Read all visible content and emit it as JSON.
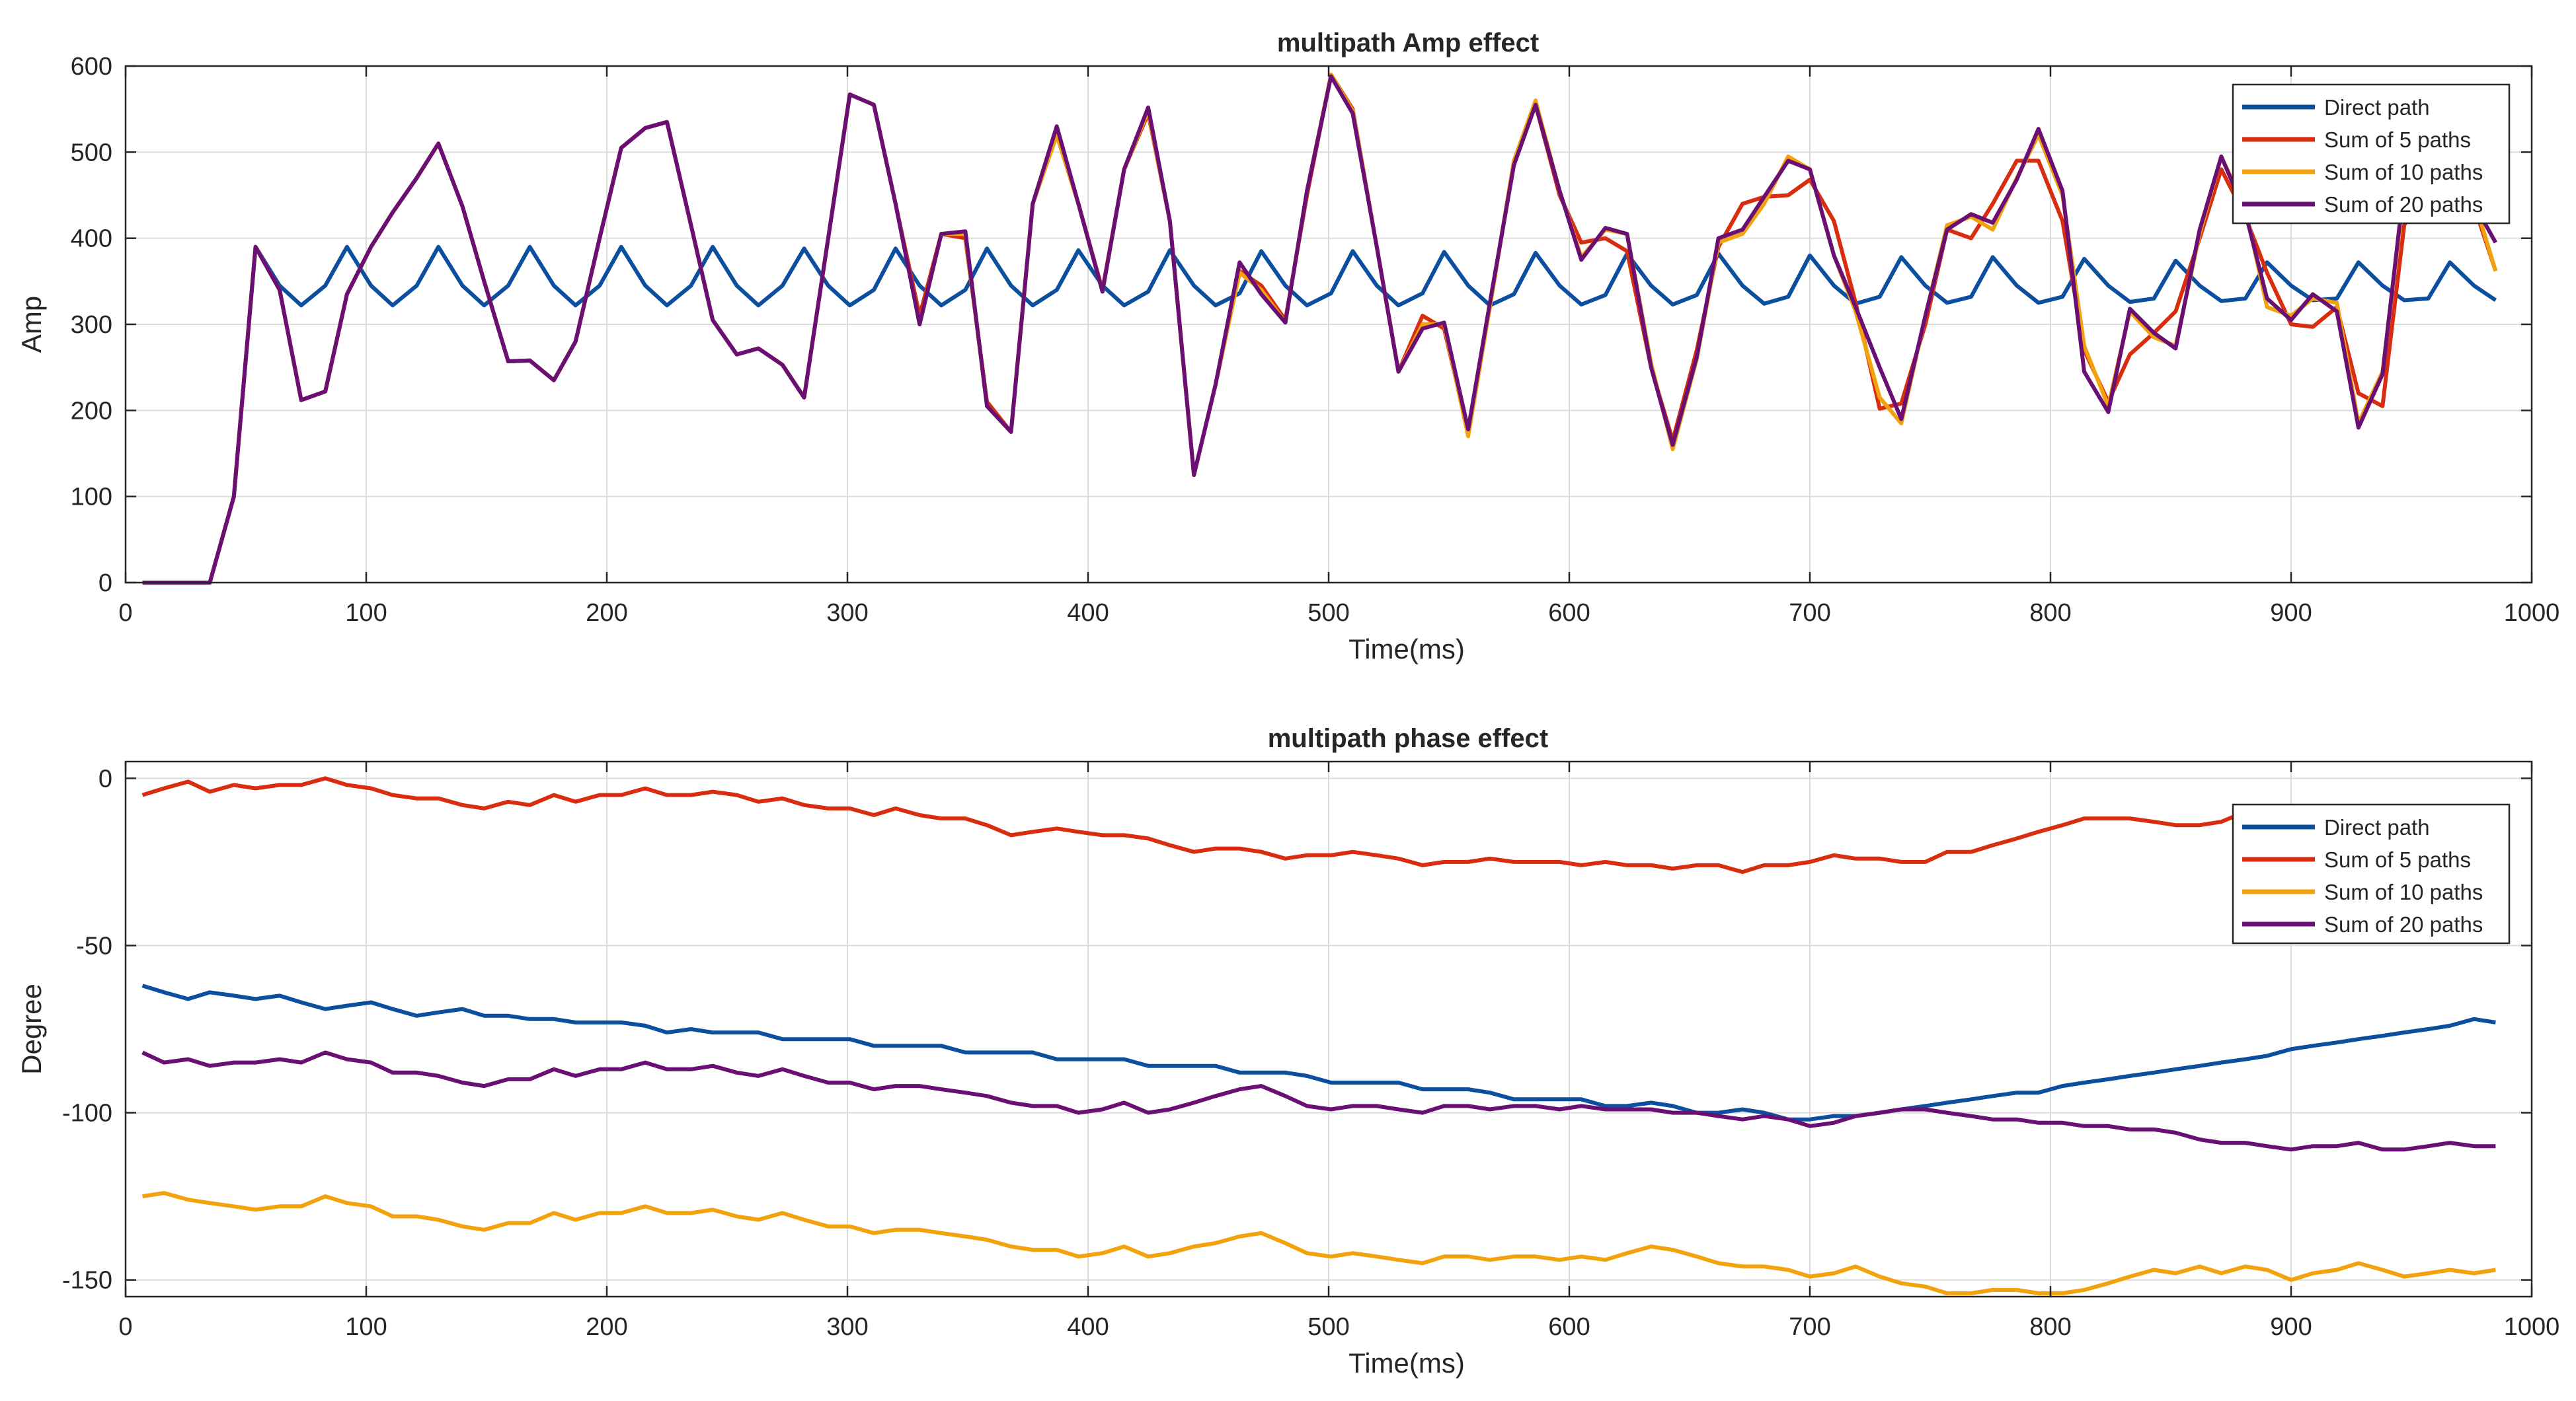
{
  "chart_data": [
    {
      "type": "line",
      "title": "multipath Amp effect",
      "xlabel": "Time(ms)",
      "ylabel": "Amp",
      "xlim": [
        0,
        1000
      ],
      "ylim": [
        0,
        600
      ],
      "xticks": [
        0,
        100,
        200,
        300,
        400,
        500,
        600,
        700,
        800,
        900,
        1000
      ],
      "yticks": [
        0,
        100,
        200,
        300,
        400,
        500,
        600
      ],
      "grid": true,
      "legend_position": "top-right",
      "x": [
        7,
        16,
        26,
        35,
        45,
        54,
        64,
        73,
        83,
        92,
        102,
        111,
        121,
        130,
        140,
        149,
        159,
        168,
        178,
        187,
        197,
        206,
        216,
        225,
        235,
        244,
        254,
        263,
        273,
        282,
        292,
        301,
        311,
        320,
        330,
        339,
        349,
        358,
        368,
        377,
        387,
        396,
        406,
        415,
        425,
        434,
        444,
        453,
        463,
        472,
        482,
        491,
        501,
        510,
        520,
        529,
        539,
        548,
        558,
        567,
        577,
        586,
        596,
        605,
        615,
        624,
        634,
        643,
        653,
        662,
        672,
        681,
        691,
        700,
        710,
        719,
        729,
        738,
        748,
        757,
        767,
        776,
        786,
        795,
        805,
        814,
        824,
        833,
        843,
        852,
        862,
        871,
        881,
        890,
        900,
        909,
        919,
        928,
        938,
        947,
        957,
        966,
        976,
        985
      ],
      "series": [
        {
          "name": "Direct path",
          "color": "#0B4F9E",
          "values": [
            0,
            0,
            0,
            0,
            100,
            390,
            345,
            322,
            345,
            390,
            345,
            322,
            345,
            390,
            345,
            322,
            345,
            390,
            345,
            322,
            345,
            390,
            345,
            322,
            345,
            390,
            345,
            322,
            345,
            388,
            345,
            322,
            340,
            388,
            345,
            322,
            340,
            388,
            345,
            322,
            340,
            386,
            345,
            322,
            338,
            386,
            345,
            322,
            336,
            385,
            345,
            322,
            336,
            385,
            345,
            322,
            336,
            384,
            345,
            322,
            335,
            383,
            345,
            323,
            334,
            382,
            345,
            323,
            334,
            382,
            345,
            324,
            332,
            380,
            345,
            324,
            332,
            378,
            345,
            325,
            332,
            378,
            345,
            325,
            332,
            376,
            345,
            326,
            330,
            374,
            345,
            327,
            330,
            372,
            345,
            328,
            330,
            372,
            345,
            328,
            330,
            372,
            345,
            328
          ]
        },
        {
          "name": "Sum of 5 paths",
          "color": "#D92D0F",
          "values": [
            0,
            0,
            0,
            0,
            100,
            390,
            340,
            212,
            222,
            335,
            390,
            430,
            470,
            510,
            437,
            350,
            257,
            258,
            235,
            280,
            400,
            505,
            528,
            535,
            415,
            305,
            265,
            272,
            253,
            215,
            400,
            567,
            555,
            440,
            310,
            405,
            400,
            210,
            175,
            440,
            520,
            440,
            340,
            480,
            545,
            420,
            125,
            230,
            362,
            345,
            305,
            450,
            590,
            550,
            390,
            245,
            310,
            295,
            175,
            320,
            490,
            555,
            450,
            395,
            400,
            385,
            250,
            165,
            270,
            390,
            440,
            448,
            450,
            468,
            420,
            325,
            202,
            208,
            300,
            410,
            400,
            440,
            490,
            490,
            420,
            270,
            210,
            265,
            290,
            315,
            400,
            480,
            425,
            360,
            300,
            297,
            320,
            220,
            205,
            415,
            460,
            465,
            438,
            362
          ]
        },
        {
          "name": "Sum of 10 paths",
          "color": "#F2A20C",
          "values": [
            0,
            0,
            0,
            0,
            100,
            390,
            340,
            212,
            222,
            335,
            390,
            430,
            470,
            510,
            437,
            350,
            257,
            258,
            235,
            280,
            400,
            505,
            528,
            535,
            415,
            305,
            265,
            272,
            253,
            215,
            400,
            567,
            555,
            440,
            300,
            405,
            405,
            205,
            175,
            440,
            520,
            440,
            338,
            480,
            548,
            420,
            125,
            230,
            360,
            340,
            302,
            455,
            590,
            548,
            390,
            245,
            300,
            300,
            170,
            320,
            490,
            560,
            455,
            378,
            410,
            405,
            255,
            155,
            260,
            395,
            405,
            440,
            495,
            480,
            380,
            315,
            215,
            185,
            310,
            415,
            425,
            410,
            470,
            520,
            450,
            275,
            205,
            315,
            285,
            275,
            405,
            495,
            435,
            320,
            310,
            330,
            325,
            185,
            245,
            455,
            490,
            465,
            445,
            362
          ]
        },
        {
          "name": "Sum of 20 paths",
          "color": "#6A0F74",
          "values": [
            0,
            0,
            0,
            0,
            100,
            390,
            340,
            212,
            222,
            335,
            390,
            430,
            470,
            510,
            437,
            350,
            257,
            258,
            235,
            280,
            400,
            505,
            528,
            535,
            415,
            305,
            265,
            272,
            253,
            215,
            400,
            567,
            555,
            440,
            300,
            405,
            408,
            205,
            175,
            440,
            530,
            440,
            338,
            480,
            552,
            420,
            125,
            230,
            372,
            335,
            302,
            455,
            588,
            545,
            390,
            245,
            295,
            302,
            178,
            325,
            485,
            555,
            455,
            375,
            412,
            405,
            250,
            160,
            262,
            400,
            410,
            448,
            490,
            480,
            380,
            320,
            250,
            190,
            310,
            410,
            428,
            418,
            468,
            527,
            455,
            245,
            198,
            318,
            290,
            272,
            410,
            495,
            430,
            330,
            305,
            335,
            315,
            180,
            242,
            462,
            495,
            468,
            440,
            395
          ]
        }
      ]
    },
    {
      "type": "line",
      "title": "multipath phase effect",
      "xlabel": "Time(ms)",
      "ylabel": "Degree",
      "xlim": [
        0,
        1000
      ],
      "ylim": [
        -155,
        5
      ],
      "xticks": [
        0,
        100,
        200,
        300,
        400,
        500,
        600,
        700,
        800,
        900,
        1000
      ],
      "yticks": [
        -150,
        -100,
        -50,
        0
      ],
      "grid": true,
      "legend_position": "top-right",
      "x": [
        7,
        16,
        26,
        35,
        45,
        54,
        64,
        73,
        83,
        92,
        102,
        111,
        121,
        130,
        140,
        149,
        159,
        168,
        178,
        187,
        197,
        206,
        216,
        225,
        235,
        244,
        254,
        263,
        273,
        282,
        292,
        301,
        311,
        320,
        330,
        339,
        349,
        358,
        368,
        377,
        387,
        396,
        406,
        415,
        425,
        434,
        444,
        453,
        463,
        472,
        482,
        491,
        501,
        510,
        520,
        529,
        539,
        548,
        558,
        567,
        577,
        586,
        596,
        605,
        615,
        624,
        634,
        643,
        653,
        662,
        672,
        681,
        691,
        700,
        710,
        719,
        729,
        738,
        748,
        757,
        767,
        776,
        786,
        795,
        805,
        814,
        824,
        833,
        843,
        852,
        862,
        871,
        881,
        890,
        900,
        909,
        919,
        928,
        938,
        947,
        957,
        966,
        976,
        985
      ],
      "series": [
        {
          "name": "Direct path",
          "color": "#0B4F9E",
          "values": [
            -62,
            -64,
            -66,
            -64,
            -65,
            -66,
            -65,
            -67,
            -69,
            -68,
            -67,
            -69,
            -71,
            -70,
            -69,
            -71,
            -71,
            -72,
            -72,
            -73,
            -73,
            -73,
            -74,
            -76,
            -75,
            -76,
            -76,
            -76,
            -78,
            -78,
            -78,
            -78,
            -80,
            -80,
            -80,
            -80,
            -82,
            -82,
            -82,
            -82,
            -84,
            -84,
            -84,
            -84,
            -86,
            -86,
            -86,
            -86,
            -88,
            -88,
            -88,
            -89,
            -91,
            -91,
            -91,
            -91,
            -93,
            -93,
            -93,
            -94,
            -96,
            -96,
            -96,
            -96,
            -98,
            -98,
            -97,
            -98,
            -100,
            -100,
            -99,
            -100,
            -102,
            -102,
            -101,
            -101,
            -100,
            -99,
            -98,
            -97,
            -96,
            -95,
            -94,
            -94,
            -92,
            -91,
            -90,
            -89,
            -88,
            -87,
            -86,
            -85,
            -84,
            -83,
            -81,
            -80,
            -79,
            -78,
            -77,
            -76,
            -75,
            -74,
            -72,
            -73
          ]
        },
        {
          "name": "Sum of 5 paths",
          "color": "#D92D0F",
          "values": [
            -5,
            -3,
            -1,
            -4,
            -2,
            -3,
            -2,
            -2,
            0,
            -2,
            -3,
            -5,
            -6,
            -6,
            -8,
            -9,
            -7,
            -8,
            -5,
            -7,
            -5,
            -5,
            -3,
            -5,
            -5,
            -4,
            -5,
            -7,
            -6,
            -8,
            -9,
            -9,
            -11,
            -9,
            -11,
            -12,
            -12,
            -14,
            -17,
            -16,
            -15,
            -16,
            -17,
            -17,
            -18,
            -20,
            -22,
            -21,
            -21,
            -22,
            -24,
            -23,
            -23,
            -22,
            -23,
            -24,
            -26,
            -25,
            -25,
            -24,
            -25,
            -25,
            -25,
            -26,
            -25,
            -26,
            -26,
            -27,
            -26,
            -26,
            -28,
            -26,
            -26,
            -25,
            -23,
            -24,
            -24,
            -25,
            -25,
            -22,
            -22,
            -20,
            -18,
            -16,
            -14,
            -12,
            -12,
            -12,
            -13,
            -14,
            -14,
            -13,
            -10,
            -11,
            -12,
            -11,
            -12,
            -11,
            -12,
            -11,
            -12,
            -12,
            -11,
            -11
          ]
        },
        {
          "name": "Sum of 10 paths",
          "color": "#F2A20C",
          "values": [
            -125,
            -124,
            -126,
            -127,
            -128,
            -129,
            -128,
            -128,
            -125,
            -127,
            -128,
            -131,
            -131,
            -132,
            -134,
            -135,
            -133,
            -133,
            -130,
            -132,
            -130,
            -130,
            -128,
            -130,
            -130,
            -129,
            -131,
            -132,
            -130,
            -132,
            -134,
            -134,
            -136,
            -135,
            -135,
            -136,
            -137,
            -138,
            -140,
            -141,
            -141,
            -143,
            -142,
            -140,
            -143,
            -142,
            -140,
            -139,
            -137,
            -136,
            -139,
            -142,
            -143,
            -142,
            -143,
            -144,
            -145,
            -143,
            -143,
            -144,
            -143,
            -143,
            -144,
            -143,
            -144,
            -142,
            -140,
            -141,
            -143,
            -145,
            -146,
            -146,
            -147,
            -149,
            -148,
            -146,
            -149,
            -151,
            -152,
            -154,
            -154,
            -153,
            -153,
            -154,
            -154,
            -153,
            -151,
            -149,
            -147,
            -148,
            -146,
            -148,
            -146,
            -147,
            -150,
            -148,
            -147,
            -145,
            -147,
            -149,
            -148,
            -147,
            -148,
            -147
          ]
        },
        {
          "name": "Sum of 20 paths",
          "color": "#6A0F74",
          "values": [
            -82,
            -85,
            -84,
            -86,
            -85,
            -85,
            -84,
            -85,
            -82,
            -84,
            -85,
            -88,
            -88,
            -89,
            -91,
            -92,
            -90,
            -90,
            -87,
            -89,
            -87,
            -87,
            -85,
            -87,
            -87,
            -86,
            -88,
            -89,
            -87,
            -89,
            -91,
            -91,
            -93,
            -92,
            -92,
            -93,
            -94,
            -95,
            -97,
            -98,
            -98,
            -100,
            -99,
            -97,
            -100,
            -99,
            -97,
            -95,
            -93,
            -92,
            -95,
            -98,
            -99,
            -98,
            -98,
            -99,
            -100,
            -98,
            -98,
            -99,
            -98,
            -98,
            -99,
            -98,
            -99,
            -99,
            -99,
            -100,
            -100,
            -101,
            -102,
            -101,
            -102,
            -104,
            -103,
            -101,
            -100,
            -99,
            -99,
            -100,
            -101,
            -102,
            -102,
            -103,
            -103,
            -104,
            -104,
            -105,
            -105,
            -106,
            -108,
            -109,
            -109,
            -110,
            -111,
            -110,
            -110,
            -109,
            -111,
            -111,
            -110,
            -109,
            -110,
            -110
          ]
        }
      ]
    }
  ]
}
